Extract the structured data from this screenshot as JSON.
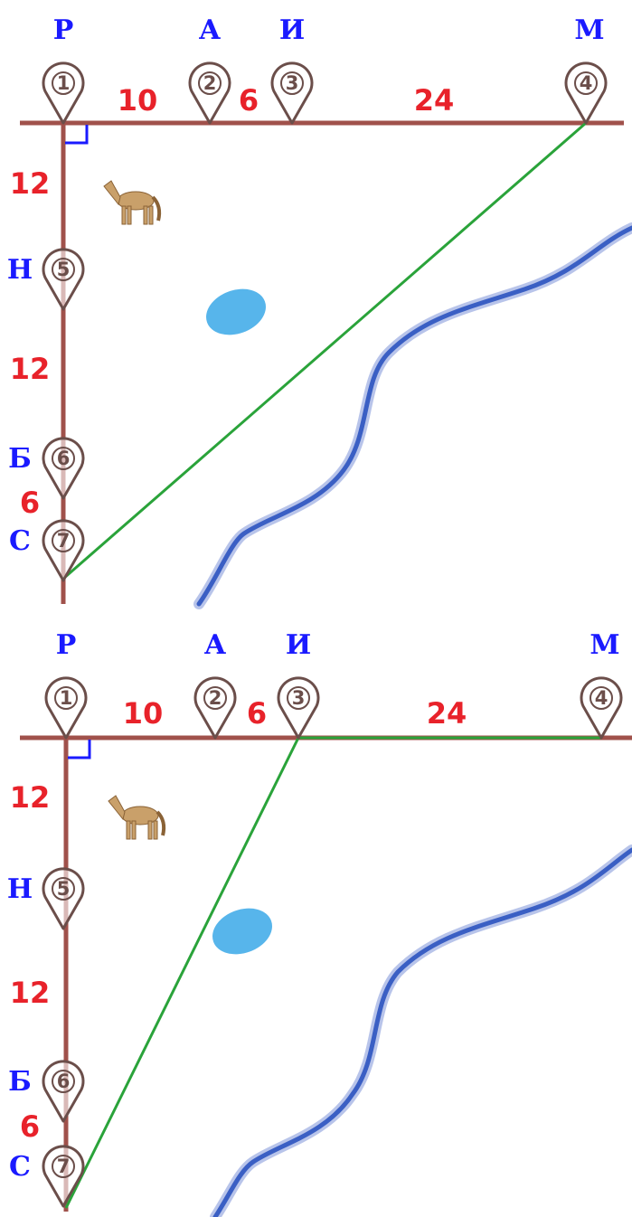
{
  "panels": [
    {
      "pins": [
        {
          "number": 1,
          "letter": "Р"
        },
        {
          "number": 2,
          "letter": "А"
        },
        {
          "number": 3,
          "letter": "И"
        },
        {
          "number": 4,
          "letter": "М"
        },
        {
          "number": 5,
          "letter": "Н"
        },
        {
          "number": 6,
          "letter": "Б"
        },
        {
          "number": 7,
          "letter": "С"
        }
      ],
      "distances": [
        10,
        6,
        24,
        12,
        12,
        6
      ]
    },
    {
      "pins": [
        {
          "number": 1,
          "letter": "Р"
        },
        {
          "number": 2,
          "letter": "А"
        },
        {
          "number": 3,
          "letter": "И"
        },
        {
          "number": 4,
          "letter": "М"
        },
        {
          "number": 5,
          "letter": "Н"
        },
        {
          "number": 6,
          "letter": "Б"
        },
        {
          "number": 7,
          "letter": "С"
        }
      ],
      "distances": [
        10,
        6,
        24,
        12,
        12,
        6
      ]
    }
  ]
}
